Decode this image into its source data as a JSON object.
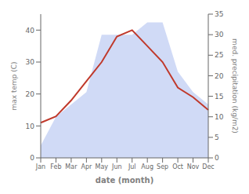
{
  "chart_data": {
    "type": "line",
    "categories": [
      "Jan",
      "Feb",
      "Mar",
      "Apr",
      "May",
      "Jun",
      "Jul",
      "Aug",
      "Sep",
      "Oct",
      "Nov",
      "Dec"
    ],
    "series": [
      {
        "type": "area",
        "axis": "y2",
        "color": "#aabbee",
        "values": [
          3,
          10,
          13,
          16,
          30,
          30,
          30,
          33,
          33,
          21,
          16,
          13
        ]
      },
      {
        "type": "line",
        "color": "#c0392b",
        "values": [
          11,
          13,
          18,
          24,
          30,
          38,
          40,
          35,
          30,
          22,
          19,
          15
        ]
      }
    ],
    "xlabel": "date (month)",
    "ylabel": "max temp (C)",
    "y2label": "med. precipitation (kg/m2)",
    "ylim": [
      0,
      45
    ],
    "yticks": [
      0,
      10,
      20,
      30,
      40
    ],
    "y2lim": [
      0,
      35
    ],
    "y2ticks": [
      0,
      5,
      10,
      15,
      20,
      25,
      30,
      35
    ],
    "grid": false
  }
}
